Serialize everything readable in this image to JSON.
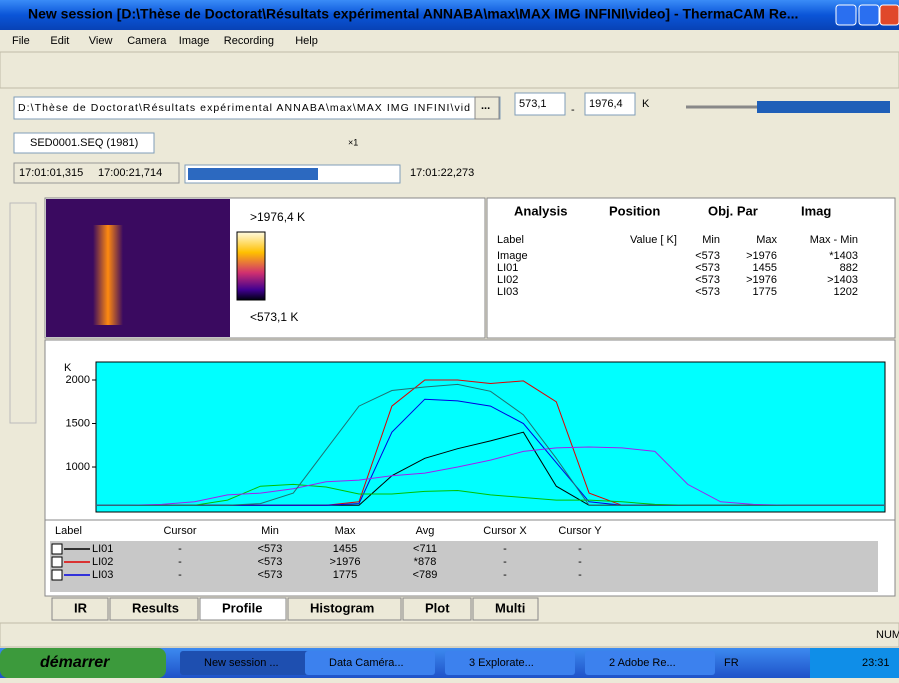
{
  "window": {
    "title": "New session [D:\\Thèse de Doctorat\\Résultats expérimental ANNABA\\max\\MAX IMG INFINI\\video] - ThermaCAM Re...",
    "menu": [
      "File",
      "Edit",
      "View",
      "Camera",
      "Image",
      "Recording",
      "Help"
    ]
  },
  "toolbar": {
    "path": "D:\\Thèse de Doctorat\\Résultats expérimental ANNABA\\max\\MAX IMG INFINI\\vid",
    "browse": "...",
    "min_temp": "573,1",
    "separator": "-",
    "max_temp": "1976,4",
    "unit": "K"
  },
  "sequence": {
    "file": "SED0001.SEQ (1981)",
    "speed": "×1"
  },
  "timeline": {
    "start": "17:01:01,315",
    "current": "17:00:21,714",
    "end": "17:01:22,273"
  },
  "image": {
    "max_label": ">1976,4 K",
    "min_label": "<573,1 K"
  },
  "analysis": {
    "tabs": [
      "Analysis",
      "Position",
      "Obj. Par",
      "Imag"
    ],
    "columns": [
      "Label",
      "Value [ K]",
      "Min",
      "Max",
      "Max - Min"
    ],
    "rows": [
      [
        "Image",
        "<573",
        ">1976",
        "*1403"
      ],
      [
        "LI01",
        "<573",
        "1455",
        "882"
      ],
      [
        "LI02",
        "<573",
        ">1976",
        ">1403"
      ],
      [
        "LI03",
        "<573",
        "1775",
        "1202"
      ]
    ]
  },
  "profile": {
    "y_label": "K",
    "ylim": [
      483,
      2207
    ],
    "yticks": [
      1000,
      1500,
      2000
    ],
    "series": [
      {
        "name": "LI01",
        "color": "#000000",
        "values": [
          560,
          560,
          560,
          560,
          560,
          560,
          560,
          560,
          560,
          900,
          1100,
          1210,
          1300,
          1400,
          780,
          560,
          560,
          560,
          560,
          560,
          560,
          560,
          560,
          560,
          560
        ]
      },
      {
        "name": "LI02",
        "color": "#e00000",
        "values": [
          560,
          560,
          560,
          560,
          560,
          560,
          560,
          560,
          600,
          1700,
          2000,
          2000,
          1960,
          1990,
          1750,
          700,
          560,
          560,
          560,
          560,
          560,
          560,
          560,
          560,
          560
        ]
      },
      {
        "name": "LI03",
        "color": "#0000e0",
        "values": [
          560,
          560,
          560,
          560,
          560,
          560,
          560,
          560,
          580,
          1400,
          1780,
          1760,
          1700,
          1500,
          1050,
          600,
          560,
          560,
          560,
          560,
          560,
          560,
          560,
          560,
          560
        ]
      },
      {
        "color": "#00c000",
        "values": [
          560,
          560,
          560,
          560,
          620,
          780,
          800,
          770,
          690,
          690,
          720,
          730,
          680,
          650,
          620,
          620,
          600,
          570,
          560,
          560,
          560,
          560,
          560,
          560,
          560
        ]
      },
      {
        "color": "#a020f0",
        "values": [
          560,
          560,
          570,
          600,
          680,
          700,
          750,
          830,
          850,
          900,
          930,
          1000,
          1080,
          1180,
          1220,
          1230,
          1220,
          1180,
          800,
          600,
          570,
          560,
          560,
          560,
          560
        ]
      },
      {
        "color": "#207070",
        "values": [
          560,
          560,
          560,
          560,
          560,
          580,
          700,
          1200,
          1700,
          1880,
          1920,
          1950,
          1870,
          1600,
          1100,
          560,
          560,
          560,
          560,
          560,
          560,
          560,
          560,
          560,
          560
        ]
      }
    ]
  },
  "profile_table": {
    "columns": [
      "Label",
      "Cursor",
      "Min",
      "Max",
      "Avg",
      "Cursor X",
      "Cursor Y"
    ],
    "rows": [
      [
        "LI01",
        "-",
        "<573",
        "1455",
        "<711",
        "-",
        "-"
      ],
      [
        "LI02",
        "-",
        "<573",
        ">1976",
        "*878",
        "-",
        "-"
      ],
      [
        "LI03",
        "-",
        "<573",
        "1775",
        "<789",
        "-",
        "-"
      ]
    ]
  },
  "tabs": [
    "IR",
    "Results",
    "Profile",
    "Histogram",
    "Plot",
    "Multi"
  ],
  "status": {
    "mode": "NUM"
  },
  "taskbar": {
    "start": "démarrer",
    "tasks": [
      "New session ...",
      "Data Caméra...",
      "3 Explorate...",
      "2 Adobe Re..."
    ],
    "lang": "FR",
    "clock": "23:31"
  }
}
